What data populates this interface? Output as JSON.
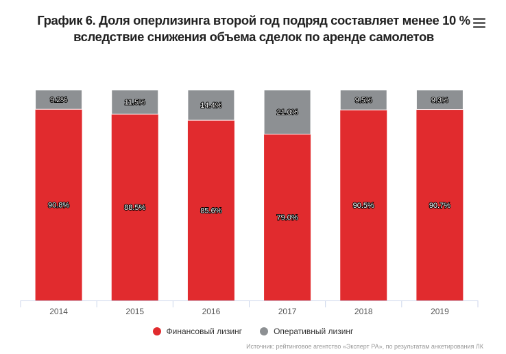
{
  "chart_data": {
    "type": "bar",
    "stacked": true,
    "title": "График 6. Доля оперлизинга второй год подряд составляет менее 10 % вследствие снижения объема сделок по аренде самолетов",
    "categories": [
      "2014",
      "2015",
      "2016",
      "2017",
      "2018",
      "2019"
    ],
    "series": [
      {
        "name": "Финансовый лизинг",
        "color": "#e12b2e",
        "values": [
          90.8,
          88.5,
          85.6,
          79.0,
          90.5,
          90.7
        ],
        "labels": [
          "90.8%",
          "88.5%",
          "85.6%",
          "79.0%",
          "90.5%",
          "90.7%"
        ]
      },
      {
        "name": "Оперативный лизинг",
        "color": "#8d9093",
        "values": [
          9.2,
          11.5,
          14.4,
          21.0,
          9.5,
          9.3
        ],
        "labels": [
          "9.2%",
          "11.5%",
          "14.4%",
          "21.0%",
          "9.5%",
          "9.3%"
        ]
      }
    ],
    "ylim": [
      0,
      100
    ],
    "grid": false,
    "legend": "bottom-center",
    "source": "Источник: рейтинговое агентство «Эксперт РА», по результатам анкетирования ЛК"
  }
}
